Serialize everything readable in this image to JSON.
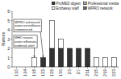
{
  "chart_data": {
    "type": "bar",
    "stacked": true,
    "ylabel": "Rumors",
    "categories": [
      "1/10",
      "1/14",
      "1/18",
      "1/22",
      "1/26",
      "1/30",
      "2/3",
      "2/7",
      "2/11",
      "2/15",
      "2/19",
      "2/23"
    ],
    "series": [
      {
        "name": "ProMED digest",
        "color": "#333333",
        "values": [
          0,
          0,
          0,
          1,
          2,
          2,
          2,
          2,
          2,
          0,
          0,
          0
        ]
      },
      {
        "name": "Embassy staff",
        "color": "#ffffff",
        "values": [
          0,
          0,
          1,
          0,
          3,
          1,
          0,
          0,
          0,
          1,
          1,
          1
        ]
      },
      {
        "name": "Professional media",
        "color": "#aaaaaa",
        "values": [
          0,
          0,
          0,
          0,
          0,
          0,
          0,
          0,
          0,
          0,
          0,
          0
        ]
      },
      {
        "name": "WPRO network",
        "color": "#666666",
        "values": [
          0,
          0,
          0,
          0,
          0,
          0,
          0,
          0,
          0,
          0,
          0,
          0
        ]
      }
    ],
    "ylim": [
      0,
      6
    ],
    "yticks": [
      0,
      1,
      2,
      3,
      4,
      5,
      6
    ],
    "grid": false,
    "legend": "upper right",
    "annotations": [
      {
        "text": "WHO issues\navian influenza\noutbreak alert",
        "x": "1/18"
      },
      {
        "text": "WPRO enhanced\navian surveillance\ncommenced",
        "x": "1/22"
      }
    ]
  }
}
